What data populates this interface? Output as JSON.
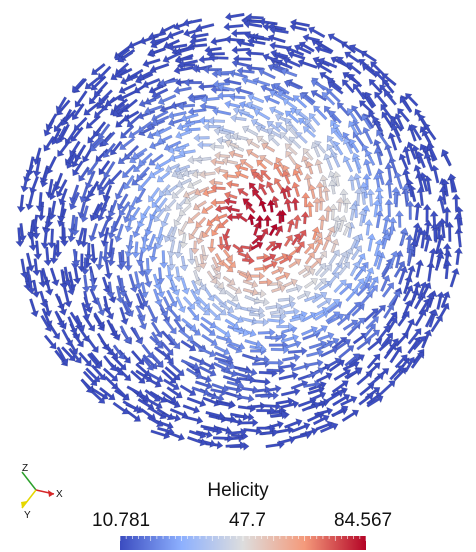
{
  "scene": {
    "background": "#ffffff",
    "glyph_type": "3D arrows",
    "color_by": "Helicity"
  },
  "orientation_axes": {
    "labels": [
      "Z",
      "X",
      "Y"
    ],
    "colors": {
      "x": "#d62728",
      "y": "#e5d700",
      "z": "#2ca02c"
    }
  },
  "legend": {
    "title": "Helicity",
    "min_label": "10.781",
    "mid_label": "47.7",
    "max_label": "84.567",
    "range": [
      10.781,
      84.567
    ],
    "colormap": [
      "#3b4cc0",
      "#8db0fe",
      "#dddddd",
      "#f49a7b",
      "#b40426"
    ]
  }
}
